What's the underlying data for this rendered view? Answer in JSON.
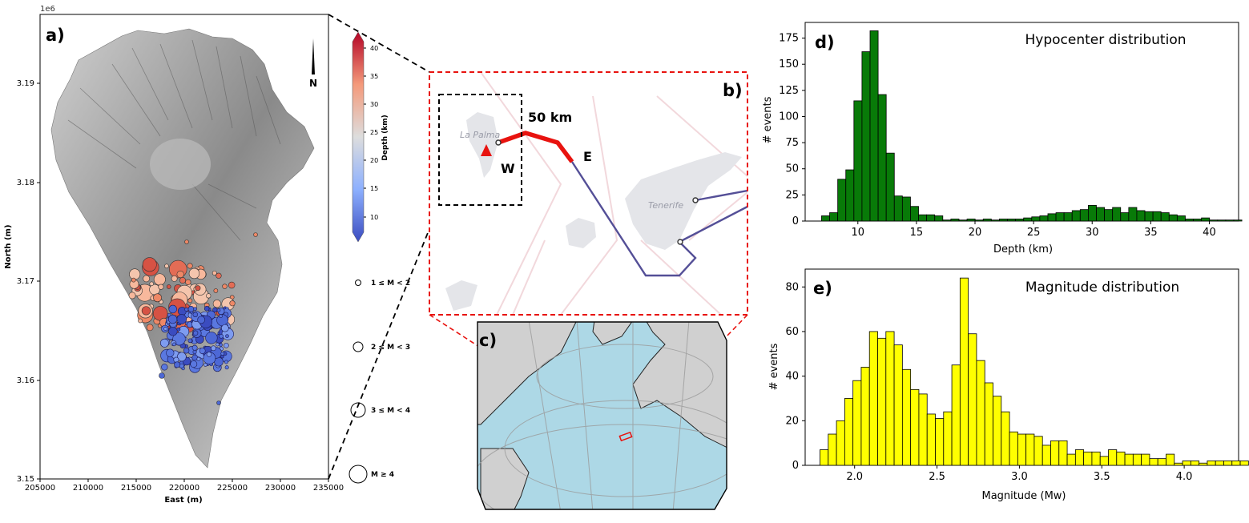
{
  "colors": {
    "red": "#e8130f",
    "darkred": "#b40426",
    "blue": "#3b4cc0",
    "green": "#087a08",
    "yellow": "#ffff00",
    "ocean": "#add8e6",
    "land": "#d0d0d0",
    "track": "#544f97",
    "shallow": "#5a78e0",
    "deep": "#ee8866"
  },
  "panel_a": {
    "label": "a)",
    "offset_label": "1e6",
    "xlabel": "East (m)",
    "ylabel": "North (m)",
    "xticks": [
      "205000",
      "210000",
      "215000",
      "220000",
      "225000",
      "230000",
      "235000"
    ],
    "yticks": [
      "3.15",
      "3.16",
      "3.17",
      "3.18",
      "3.19"
    ],
    "north": "N",
    "colorbar_label": "Depth (km)",
    "colorbar_ticks": [
      "10",
      "15",
      "20",
      "25",
      "30",
      "35",
      "40"
    ],
    "legend": [
      "1 ≤ M < 2",
      "2 ≤ M < 3",
      "3 ≤ M < 4",
      "M ≥ 4"
    ]
  },
  "panel_b": {
    "label": "b)",
    "island_labels": [
      "La Palma",
      "Tenerife"
    ],
    "scale": "50 km",
    "west": "W",
    "east": "E"
  },
  "panel_c": {
    "label": "c)"
  },
  "chart_data": [
    {
      "type": "bar",
      "panel": "d)",
      "title": "Hypocenter distribution",
      "xlabel": "Depth (km)",
      "ylabel": "# events",
      "xlim": [
        5.5,
        42.5
      ],
      "ylim": [
        0,
        190
      ],
      "xticks": [
        10,
        15,
        20,
        25,
        30,
        35,
        40
      ],
      "yticks": [
        0,
        25,
        50,
        75,
        100,
        125,
        150,
        175
      ],
      "bin_start": 6.9,
      "bin_width": 0.69,
      "values": [
        5,
        8,
        40,
        49,
        115,
        162,
        182,
        121,
        65,
        24,
        23,
        14,
        6,
        6,
        5,
        1,
        2,
        1,
        2,
        1,
        2,
        1,
        2,
        2,
        2,
        3,
        4,
        5,
        7,
        8,
        8,
        10,
        11,
        15,
        13,
        11,
        13,
        8,
        13,
        10,
        9,
        9,
        8,
        6,
        5,
        2,
        2,
        3,
        1,
        1,
        1,
        1
      ]
    },
    {
      "type": "bar",
      "panel": "e)",
      "title": "Magnitude distribution",
      "xlabel": "Magnitude (Mw)",
      "ylabel": "# events",
      "xlim": [
        1.7,
        4.33
      ],
      "ylim": [
        0,
        88
      ],
      "xticks": [
        2.0,
        2.5,
        3.0,
        3.5,
        4.0
      ],
      "yticks": [
        0,
        20,
        40,
        60,
        80
      ],
      "bin_start": 1.79,
      "bin_width": 0.05,
      "values": [
        7,
        14,
        20,
        30,
        38,
        44,
        60,
        57,
        60,
        54,
        43,
        34,
        32,
        23,
        21,
        24,
        45,
        84,
        59,
        47,
        37,
        31,
        24,
        15,
        14,
        14,
        13,
        9,
        11,
        11,
        5,
        7,
        6,
        6,
        4,
        7,
        6,
        5,
        5,
        5,
        3,
        3,
        5,
        1,
        2,
        2,
        1,
        2,
        2,
        2,
        2,
        2
      ]
    }
  ]
}
